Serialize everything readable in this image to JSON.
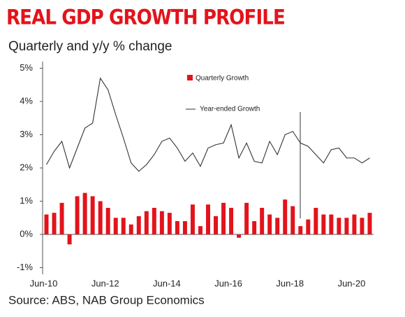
{
  "chart_data": {
    "type": "bar_line",
    "title": "REAL GDP GROWTH PROFILE",
    "subtitle": "Quarterly and y/y % change",
    "source": "Source: ABS, NAB Group Economics",
    "categories": [
      "Jun-10",
      null,
      null,
      null,
      null,
      null,
      null,
      null,
      "Jun-12",
      null,
      null,
      null,
      null,
      null,
      null,
      null,
      "Jun-14",
      null,
      null,
      null,
      null,
      null,
      null,
      null,
      "Jun-16",
      null,
      null,
      null,
      null,
      null,
      null,
      null,
      "Jun-18",
      null,
      null,
      null,
      null,
      null,
      null,
      null,
      "Jun-20",
      null,
      null
    ],
    "series": [
      {
        "name": "Quarterly Growth",
        "kind": "bar",
        "color": "#e3131b",
        "values": [
          0.6,
          0.65,
          0.95,
          -0.3,
          1.15,
          1.25,
          1.15,
          1.0,
          0.8,
          0.5,
          0.5,
          0.3,
          0.55,
          0.7,
          0.8,
          0.7,
          0.65,
          0.4,
          0.4,
          0.9,
          0.25,
          0.9,
          0.55,
          0.95,
          0.8,
          -0.1,
          0.95,
          0.4,
          0.8,
          0.6,
          0.5,
          1.05,
          0.85,
          0.25,
          0.45,
          0.8,
          0.6,
          0.6,
          0.5,
          0.5,
          0.6,
          0.5,
          0.65
        ]
      },
      {
        "name": "Year-ended Growth",
        "kind": "line",
        "color": "#333333",
        "values": [
          2.1,
          2.5,
          2.8,
          2.0,
          2.6,
          3.2,
          3.35,
          4.7,
          4.35,
          3.6,
          2.9,
          2.15,
          1.9,
          2.1,
          2.4,
          2.8,
          2.9,
          2.6,
          2.2,
          2.45,
          2.05,
          2.6,
          2.7,
          2.75,
          3.3,
          2.3,
          2.75,
          2.2,
          2.15,
          2.8,
          2.4,
          3.0,
          3.1,
          2.75,
          2.65,
          2.4,
          2.15,
          2.55,
          2.6,
          2.3,
          2.3,
          2.15,
          2.3
        ]
      }
    ],
    "ylim": [
      -1.2,
      5.2
    ],
    "yticks": [
      {
        "value": -1,
        "label": "-1%"
      },
      {
        "value": 0,
        "label": "0%"
      },
      {
        "value": 1,
        "label": "1%"
      },
      {
        "value": 2,
        "label": "2%"
      },
      {
        "value": 3,
        "label": "3%"
      },
      {
        "value": 4,
        "label": "4%"
      },
      {
        "value": 5,
        "label": "5%"
      }
    ],
    "grid": false
  }
}
